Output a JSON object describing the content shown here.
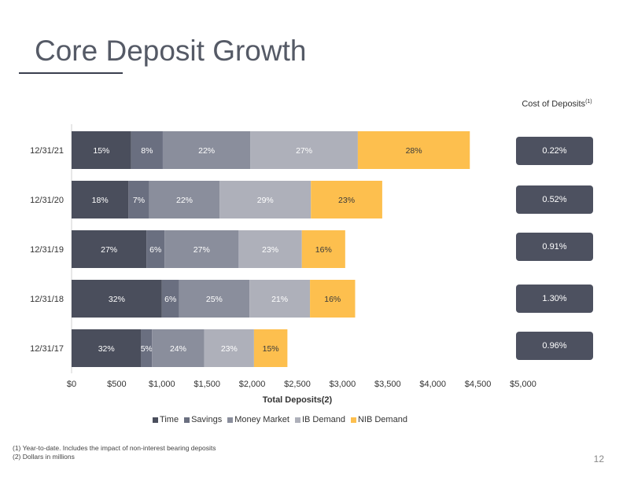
{
  "title": "Core Deposit Growth",
  "chart_data": {
    "type": "bar",
    "orientation": "horizontal",
    "stacked": true,
    "xlabel": "Total Deposits(2)",
    "xlim": [
      0,
      5000
    ],
    "xticks": [
      0,
      500,
      1000,
      1500,
      2000,
      2500,
      3000,
      3500,
      4000,
      4500,
      5000
    ],
    "xtick_labels": [
      "$0",
      "$500",
      "$1,000",
      "$1,500",
      "$2,000",
      "$2,500",
      "$3,000",
      "$3,500",
      "$4,000",
      "$4,500",
      "$5,000"
    ],
    "categories": [
      "12/31/21",
      "12/31/20",
      "12/31/19",
      "12/31/18",
      "12/31/17"
    ],
    "legend_position": "bottom",
    "series": [
      {
        "name": "Time",
        "color": "#4a4e5c",
        "values": [
          660,
          630,
          830,
          1000,
          770
        ],
        "labels": [
          "15%",
          "18%",
          "27%",
          "32%",
          "32%"
        ]
      },
      {
        "name": "Savings",
        "color": "#6a6f80",
        "values": [
          350,
          230,
          200,
          190,
          120
        ],
        "labels": [
          "8%",
          "7%",
          "6%",
          "6%",
          "5%"
        ]
      },
      {
        "name": "Money Market",
        "color": "#8a8e9c",
        "values": [
          970,
          780,
          820,
          780,
          580
        ],
        "labels": [
          "22%",
          "22%",
          "27%",
          "25%",
          "24%"
        ]
      },
      {
        "name": "IB Demand",
        "color": "#aeb0ba",
        "values": [
          1190,
          1010,
          700,
          670,
          550
        ],
        "labels": [
          "27%",
          "29%",
          "23%",
          "21%",
          "23%"
        ]
      },
      {
        "name": "NIB Demand",
        "color": "#fdbf4e",
        "values": [
          1240,
          790,
          480,
          500,
          370
        ],
        "labels": [
          "28%",
          "23%",
          "16%",
          "16%",
          "15%"
        ]
      }
    ]
  },
  "cost_of_deposits": {
    "header": "Cost of Deposits",
    "header_sup": "(1)",
    "values": [
      "0.22%",
      "0.52%",
      "0.91%",
      "1.30%",
      "0.96%"
    ]
  },
  "footnotes": [
    "(1)   Year-to-date. Includes the impact of non-interest bearing deposits",
    "(2)   Dollars in millions"
  ],
  "page_number": "12"
}
